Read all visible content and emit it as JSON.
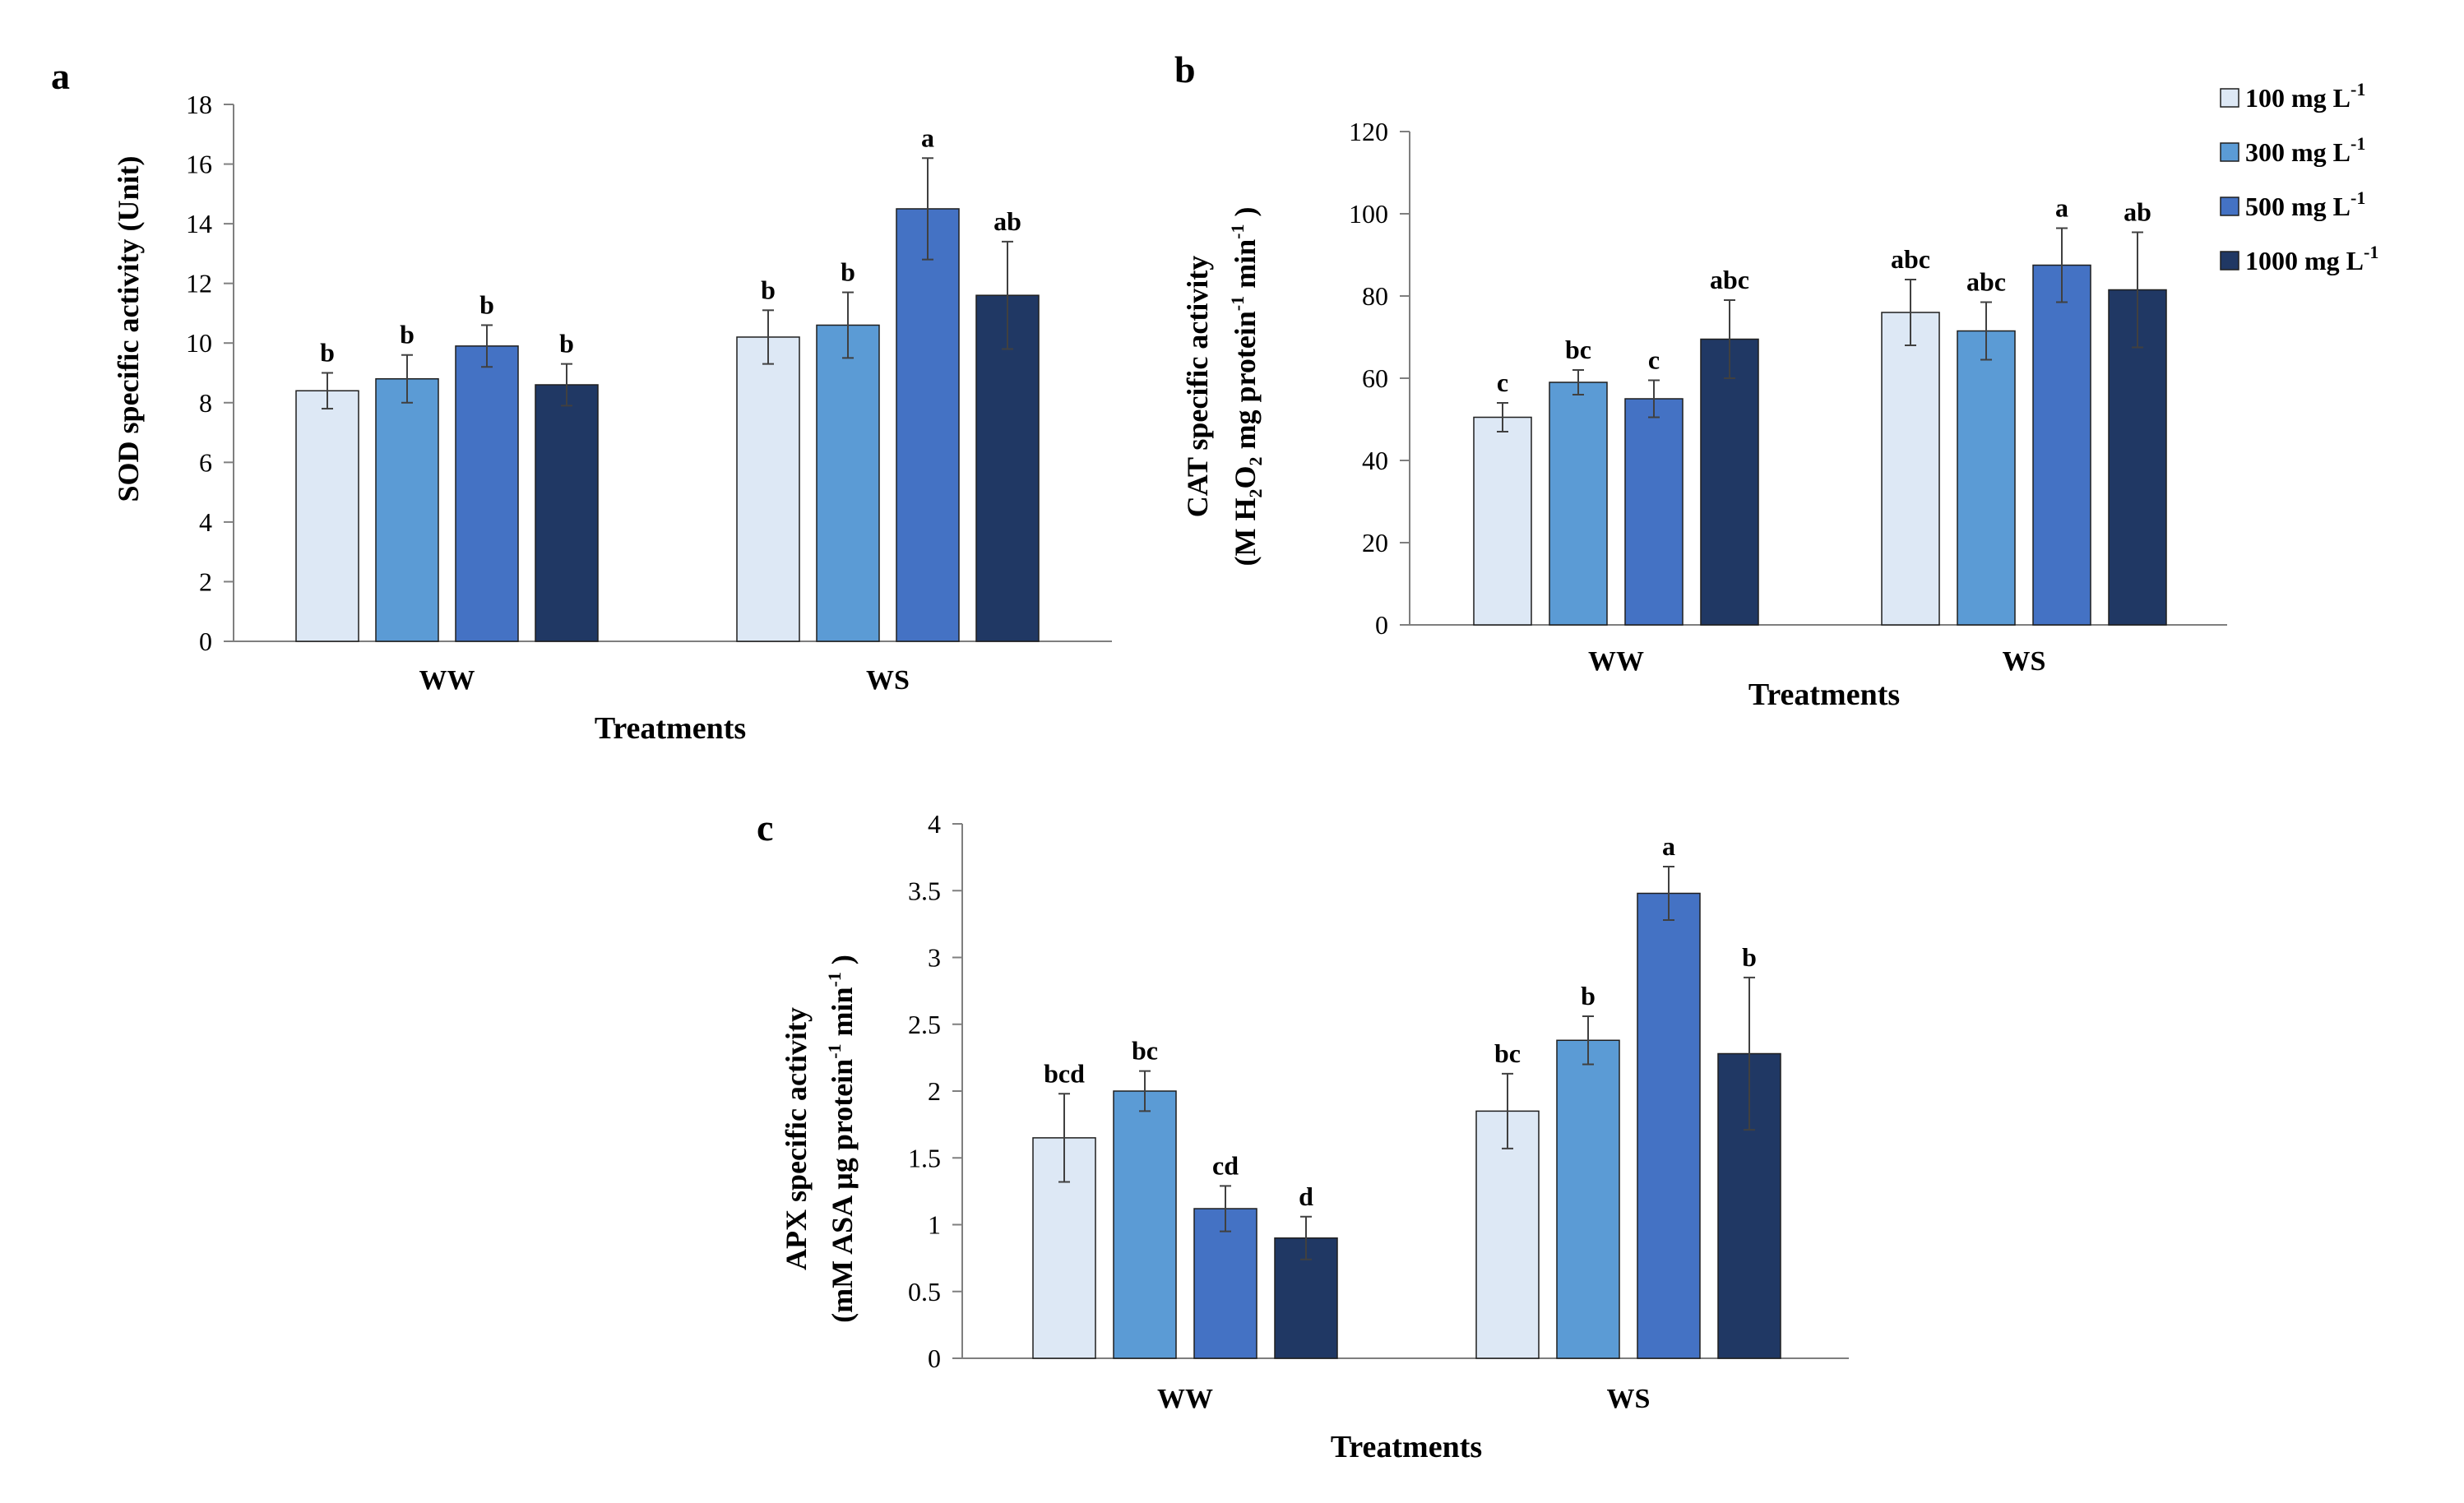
{
  "legend": [
    "100 mg L",
    "300 mg L",
    "500 mg L",
    "1000  mg L"
  ],
  "legend_sup": "-1",
  "series_colors": [
    "#dde8f5",
    "#5b9bd5",
    "#4472c4",
    "#203864"
  ],
  "chart_data": [
    {
      "type": "bar",
      "panel": "a",
      "xlabel": "Treatments",
      "ylabel": "SOD specific activity (Unit)",
      "categories": [
        "WW",
        "WS"
      ],
      "ylim": [
        0,
        18
      ],
      "yticks": [
        0,
        2,
        4,
        6,
        8,
        10,
        12,
        14,
        16,
        18
      ],
      "series": [
        {
          "name": "100 mg L-1",
          "values": [
            8.4,
            10.2
          ],
          "errors": [
            0.6,
            0.9
          ],
          "letters": [
            "b",
            "b"
          ]
        },
        {
          "name": "300 mg L-1",
          "values": [
            8.8,
            10.6
          ],
          "errors": [
            0.8,
            1.1
          ],
          "letters": [
            "b",
            "b"
          ]
        },
        {
          "name": "500 mg L-1",
          "values": [
            9.9,
            14.5
          ],
          "errors": [
            0.7,
            1.7
          ],
          "letters": [
            "b",
            "a"
          ]
        },
        {
          "name": "1000 mg L-1",
          "values": [
            8.6,
            11.6
          ],
          "errors": [
            0.7,
            1.8
          ],
          "letters": [
            "b",
            "ab"
          ]
        }
      ]
    },
    {
      "type": "bar",
      "panel": "b",
      "xlabel": "Treatments",
      "ylabel_line1": "CAT specific activity",
      "ylabel_line2": "(M H",
      "ylabel_sub": "2",
      "ylabel_mid1": "O",
      "ylabel_sub2": "2",
      "ylabel_mid2": "  mg protein",
      "ylabel_sup": "-1",
      "ylabel_mid3": " min",
      "ylabel_sup2": "-1",
      "ylabel_end": " )",
      "categories": [
        "WW",
        "WS"
      ],
      "ylim": [
        0,
        120
      ],
      "yticks": [
        0,
        20,
        40,
        60,
        80,
        100,
        120
      ],
      "series": [
        {
          "name": "100 mg L-1",
          "values": [
            50.5,
            76
          ],
          "errors": [
            3.5,
            8
          ],
          "letters": [
            "c",
            "abc"
          ]
        },
        {
          "name": "300 mg L-1",
          "values": [
            59,
            71.5
          ],
          "errors": [
            3,
            7
          ],
          "letters": [
            "bc",
            "abc"
          ]
        },
        {
          "name": "500 mg L-1",
          "values": [
            55,
            87.5
          ],
          "errors": [
            4.5,
            9
          ],
          "letters": [
            "c",
            "a"
          ]
        },
        {
          "name": "1000 mg L-1",
          "values": [
            69.5,
            81.5
          ],
          "errors": [
            9.5,
            14
          ],
          "letters": [
            "abc",
            "ab"
          ]
        }
      ]
    },
    {
      "type": "bar",
      "panel": "c",
      "xlabel": "Treatments",
      "ylabel_line1": "APX specific activity",
      "ylabel_line2": "(mM ASA µg protein",
      "ylabel_sup": "-1",
      "ylabel_mid": " min",
      "ylabel_sup2": "-1",
      "ylabel_end": " )",
      "categories": [
        "WW",
        "WS"
      ],
      "ylim": [
        0,
        4
      ],
      "yticks": [
        "0",
        "0.5",
        "1",
        "1.5",
        "2",
        "2.5",
        "3",
        "3.5",
        "4"
      ],
      "series": [
        {
          "name": "100 mg L-1",
          "values": [
            1.65,
            1.85
          ],
          "errors": [
            0.33,
            0.28
          ],
          "letters": [
            "bcd",
            "bc"
          ]
        },
        {
          "name": "300 mg L-1",
          "values": [
            2.0,
            2.38
          ],
          "errors": [
            0.15,
            0.18
          ],
          "letters": [
            "bc",
            "b"
          ]
        },
        {
          "name": "500 mg L-1",
          "values": [
            1.12,
            3.48
          ],
          "errors": [
            0.17,
            0.2
          ],
          "letters": [
            "cd",
            "a"
          ]
        },
        {
          "name": "1000 mg L-1",
          "values": [
            0.9,
            2.28
          ],
          "errors": [
            0.16,
            0.57
          ],
          "letters": [
            "d",
            "b"
          ]
        }
      ]
    }
  ]
}
